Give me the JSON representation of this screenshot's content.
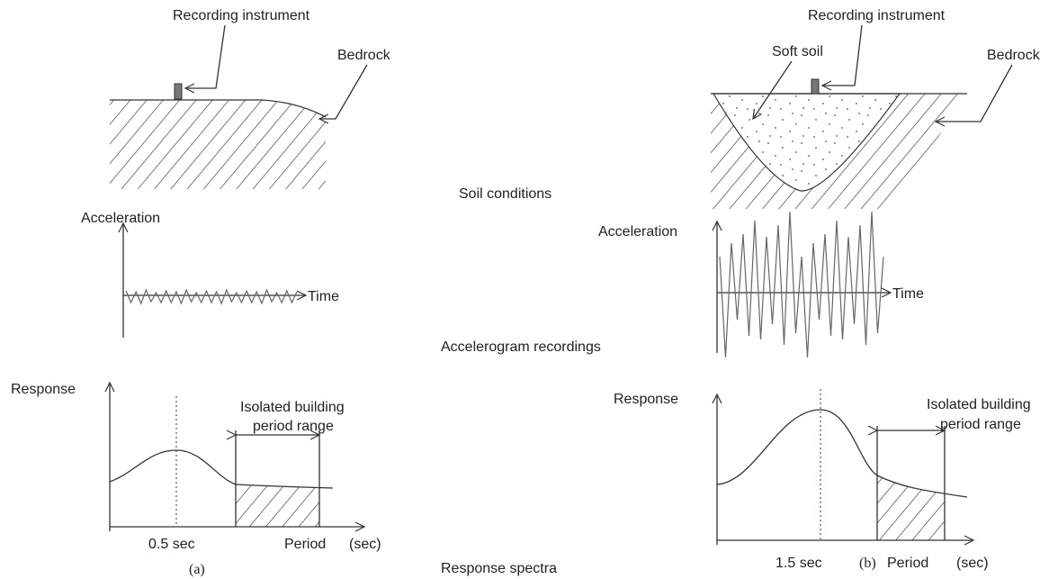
{
  "panels": [
    {
      "recording_instrument": "Recording instrument",
      "bedrock": "Bedrock",
      "acceleration": "Acceleration",
      "time": "Time",
      "response": "Response",
      "isolated_range": [
        "Isolated building",
        "period range"
      ],
      "peak_period": "0.5 sec",
      "period": "Period",
      "unit": "(sec)",
      "caption": "(a)"
    },
    {
      "recording_instrument": "Recording instrument",
      "soft_soil": "Soft soil",
      "bedrock": "Bedrock",
      "acceleration": "Acceleration",
      "time": "Time",
      "response": "Response",
      "isolated_range": [
        "Isolated building",
        "period range"
      ],
      "peak_period": "1.5 sec",
      "period": "Period",
      "unit": "(sec)",
      "caption": "(b)"
    }
  ],
  "row_labels": [
    "Soil conditions",
    "Accelerogram recordings",
    "Response spectra"
  ]
}
